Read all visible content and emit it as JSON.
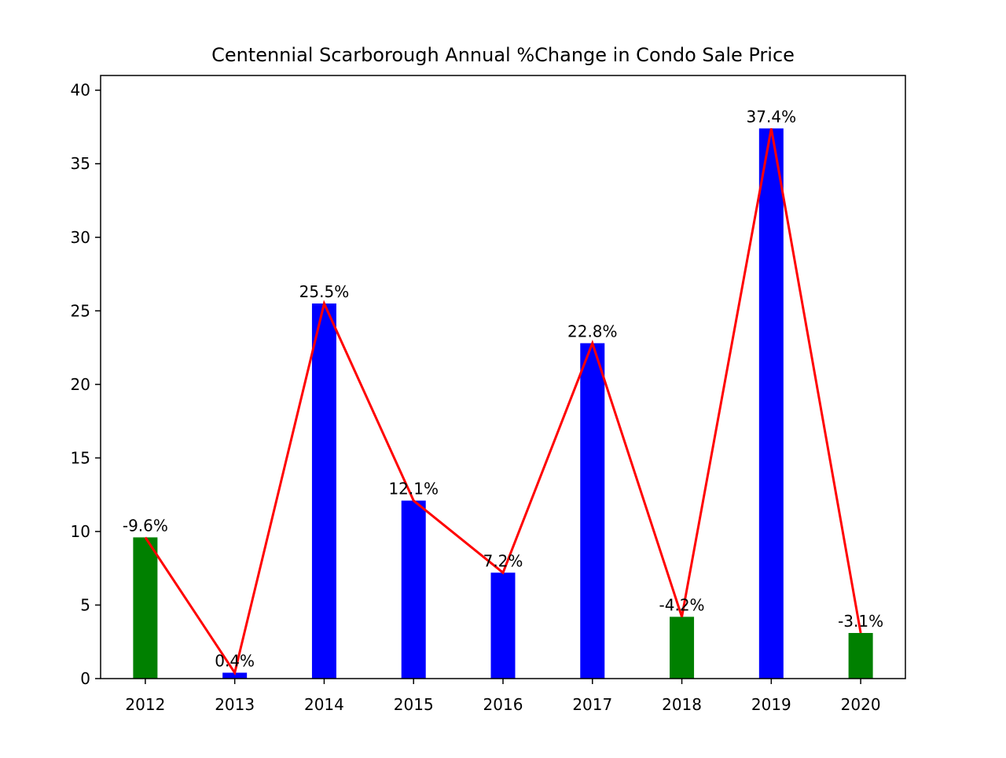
{
  "chart_data": {
    "type": "bar",
    "title": "Centennial Scarborough Annual %Change in Condo Sale Price",
    "xlabel": "",
    "ylabel": "",
    "categories": [
      "2012",
      "2013",
      "2014",
      "2015",
      "2016",
      "2017",
      "2018",
      "2019",
      "2020"
    ],
    "values": [
      9.6,
      0.4,
      25.5,
      12.1,
      7.2,
      22.8,
      4.2,
      37.4,
      3.1
    ],
    "data_labels": [
      "-9.6%",
      "0.4%",
      "25.5%",
      "12.1%",
      "7.2%",
      "22.8%",
      "-4.2%",
      "37.4%",
      "-3.1%"
    ],
    "bar_colors": [
      "#008000",
      "#0000ff",
      "#0000ff",
      "#0000ff",
      "#0000ff",
      "#0000ff",
      "#008000",
      "#0000ff",
      "#008000"
    ],
    "line": {
      "values": [
        9.6,
        0.4,
        25.5,
        12.1,
        7.2,
        22.8,
        4.2,
        37.4,
        3.1
      ],
      "color": "#ff0000"
    },
    "yticks": [
      0,
      5,
      10,
      15,
      20,
      25,
      30,
      35,
      40
    ],
    "ylim": [
      0,
      41
    ],
    "grid": false,
    "legend": "none"
  }
}
